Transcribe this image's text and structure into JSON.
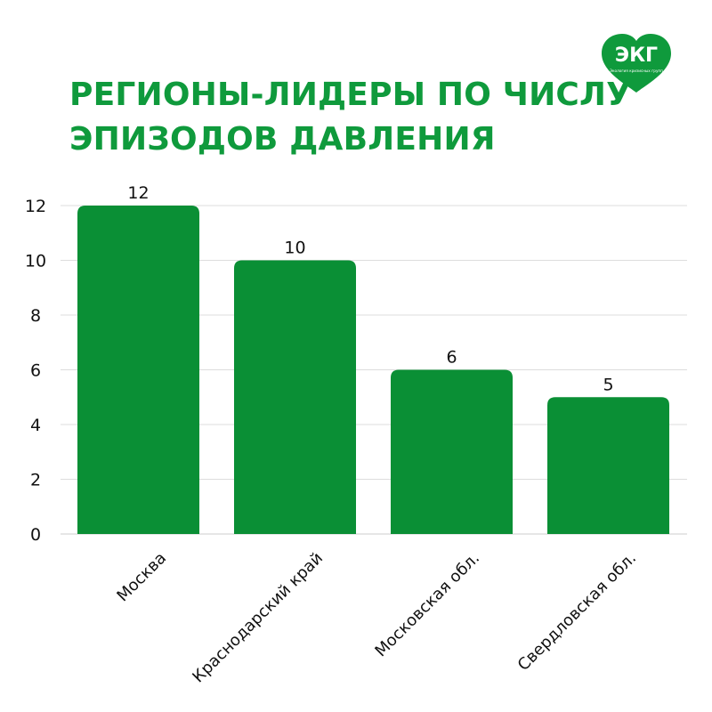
{
  "title": {
    "line1": "РЕГИОНЫ-ЛИДЕРЫ ПО ЧИСЛУ",
    "line2": "ЭПИЗОДОВ ДАВЛЕНИЯ"
  },
  "logo": {
    "text": "ЭКГ",
    "tagline": "Экология кризисных групп",
    "icon": "heart-logo-icon",
    "color": "#0f9a3c"
  },
  "colors": {
    "accent": "#0f9a3c",
    "bar": "#0a8f35",
    "grid": "#dddddd",
    "text": "#111111"
  },
  "chart_data": {
    "type": "bar",
    "categories": [
      "Москва",
      "Краснодарский край",
      "Московская обл.",
      "Свердловская обл."
    ],
    "values": [
      12,
      10,
      6,
      5
    ],
    "title": "РЕГИОНЫ-ЛИДЕРЫ ПО ЧИСЛУ ЭПИЗОДОВ ДАВЛЕНИЯ",
    "xlabel": "",
    "ylabel": "",
    "ylim": [
      0,
      12
    ],
    "yticks": [
      0,
      2,
      4,
      6,
      8,
      10,
      12
    ],
    "grid": true,
    "data_labels": true
  }
}
